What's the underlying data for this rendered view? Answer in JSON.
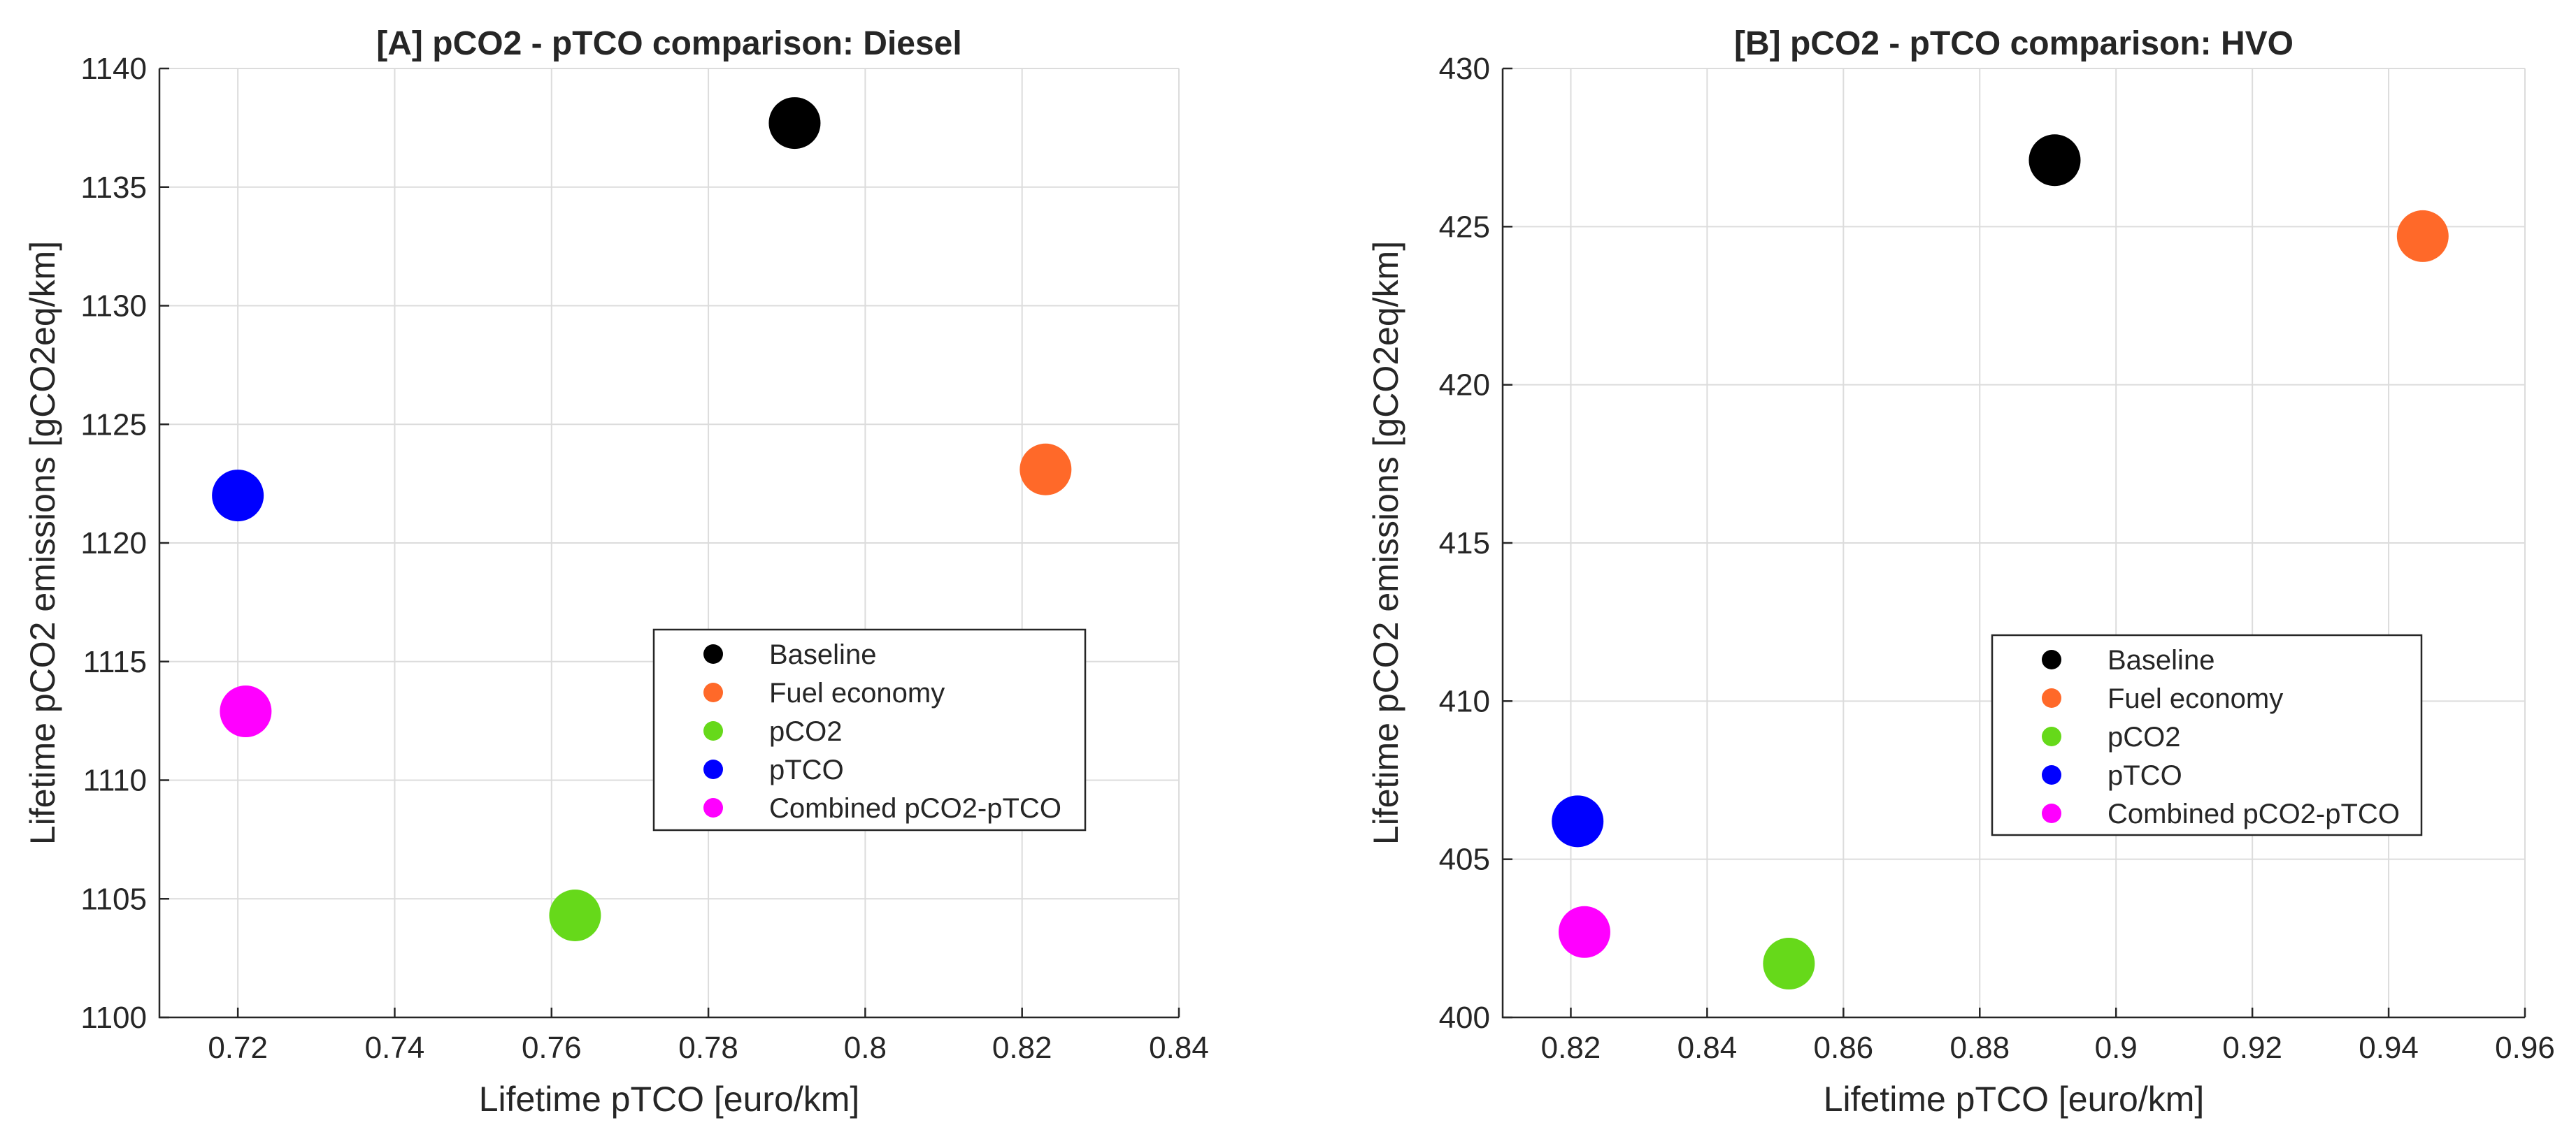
{
  "chart_data": [
    {
      "type": "scatter",
      "title": "[A] pCO2 - pTCO comparison: Diesel",
      "xlabel": "Lifetime pTCO [euro/km]",
      "ylabel": "Lifetime pCO2 emissions [gCO2eq/km]",
      "xlim": [
        0.71,
        0.84
      ],
      "ylim": [
        1100,
        1140
      ],
      "xticks": [
        0.72,
        0.74,
        0.76,
        0.78,
        0.8,
        0.82,
        0.84
      ],
      "xtick_labels": [
        "0.72",
        "0.74",
        "0.76",
        "0.78",
        "0.8",
        "0.82",
        "0.84"
      ],
      "yticks": [
        1100,
        1105,
        1110,
        1115,
        1120,
        1125,
        1130,
        1135,
        1140
      ],
      "ytick_labels": [
        "1100",
        "1105",
        "1110",
        "1115",
        "1120",
        "1125",
        "1130",
        "1135",
        "1140"
      ],
      "grid": true,
      "legend_position": "center-right",
      "series": [
        {
          "name": "Baseline",
          "color": "#000000",
          "x": 0.791,
          "y": 1137.7
        },
        {
          "name": "Fuel economy",
          "color": "#ff6929",
          "x": 0.823,
          "y": 1123.1
        },
        {
          "name": "pCO2",
          "color": "#66d91a",
          "x": 0.763,
          "y": 1104.3
        },
        {
          "name": "pTCO",
          "color": "#0000ff",
          "x": 0.72,
          "y": 1122.0
        },
        {
          "name": "Combined pCO2-pTCO",
          "color": "#ff00ff",
          "x": 0.721,
          "y": 1112.9
        }
      ]
    },
    {
      "type": "scatter",
      "title": "[B] pCO2 - pTCO comparison: HVO",
      "xlabel": "Lifetime pTCO [euro/km]",
      "ylabel": "Lifetime pCO2 emissions [gCO2eq/km]",
      "xlim": [
        0.81,
        0.96
      ],
      "ylim": [
        400,
        430
      ],
      "xticks": [
        0.82,
        0.84,
        0.86,
        0.88,
        0.9,
        0.92,
        0.94,
        0.96
      ],
      "xtick_labels": [
        "0.82",
        "0.84",
        "0.86",
        "0.88",
        "0.9",
        "0.92",
        "0.94",
        "0.96"
      ],
      "yticks": [
        400,
        405,
        410,
        415,
        420,
        425,
        430
      ],
      "ytick_labels": [
        "400",
        "405",
        "410",
        "415",
        "420",
        "425",
        "430"
      ],
      "grid": true,
      "legend_position": "center-right",
      "series": [
        {
          "name": "Baseline",
          "color": "#000000",
          "x": 0.891,
          "y": 427.1
        },
        {
          "name": "Fuel economy",
          "color": "#ff6929",
          "x": 0.945,
          "y": 424.7
        },
        {
          "name": "pCO2",
          "color": "#66d91a",
          "x": 0.852,
          "y": 401.7
        },
        {
          "name": "pTCO",
          "color": "#0000ff",
          "x": 0.821,
          "y": 406.2
        },
        {
          "name": "Combined pCO2-pTCO",
          "color": "#ff00ff",
          "x": 0.822,
          "y": 402.7
        }
      ]
    }
  ]
}
